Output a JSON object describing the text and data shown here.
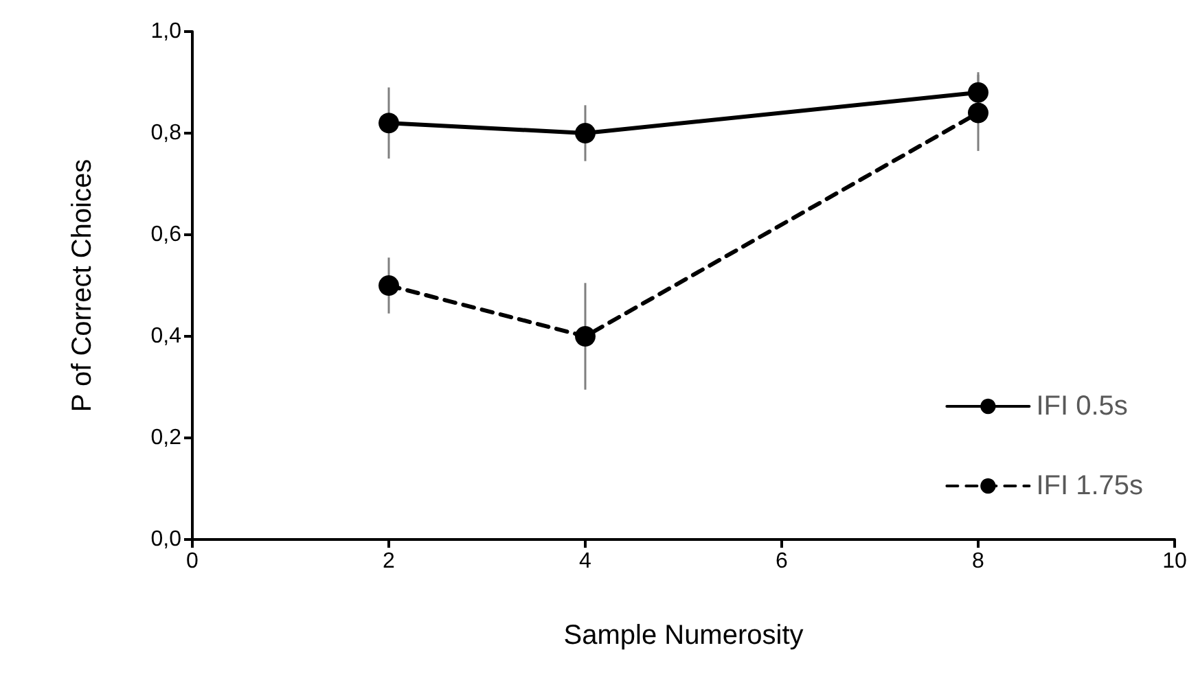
{
  "chart_data": {
    "type": "line",
    "xlabel": "Sample Numerosity",
    "ylabel": "P of Correct Choices",
    "x": [
      2,
      4,
      8
    ],
    "series": [
      {
        "name": "IFI 0.5s",
        "color": "#000000",
        "line_style": "solid",
        "values": [
          0.82,
          0.8,
          0.88
        ],
        "errors": [
          0.07,
          0.055,
          0.04
        ]
      },
      {
        "name": "IFI 1.75s",
        "color": "#000000",
        "line_style": "dashed",
        "values": [
          0.5,
          0.4,
          0.84
        ],
        "errors": [
          0.055,
          0.105,
          0.075
        ]
      }
    ],
    "xlim": [
      0,
      10
    ],
    "xticks": [
      0,
      2,
      4,
      6,
      8,
      10
    ],
    "ylim": [
      0,
      1
    ],
    "yticks": [
      {
        "value": 0,
        "label": "0,0"
      },
      {
        "value": 0.2,
        "label": "0,2"
      },
      {
        "value": 0.4,
        "label": "0,4"
      },
      {
        "value": 0.6,
        "label": "0,6"
      },
      {
        "value": 0.8,
        "label": "0,8"
      },
      {
        "value": 1,
        "label": "1,0"
      }
    ],
    "grid": false,
    "legend": "bottom right",
    "marker": "circle"
  }
}
